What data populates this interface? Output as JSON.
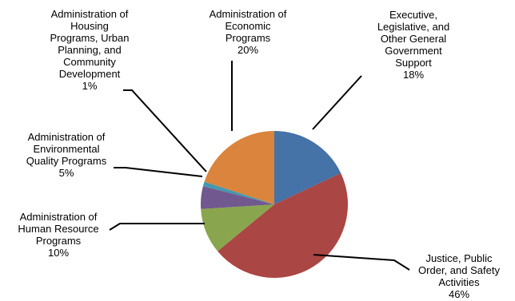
{
  "chart_data": {
    "type": "pie",
    "start_angle_deg": 0,
    "direction": "clockwise",
    "legend": "none",
    "slices": [
      {
        "label": "Executive, Legislative, and Other General Government Support",
        "label_lines": [
          "Executive,",
          "Legislative, and",
          "Other General",
          "Government",
          "Support"
        ],
        "percent_label": "18%",
        "value": 18,
        "color": "#4572A7"
      },
      {
        "label": "Justice, Public Order, and Safety Activities",
        "label_lines": [
          "Justice, Public",
          "Order, and Safety",
          "Activities"
        ],
        "percent_label": "46%",
        "value": 46,
        "color": "#AA4643"
      },
      {
        "label": "Administration of Human Resource Programs",
        "label_lines": [
          "Administration of",
          "Human Resource",
          "Programs"
        ],
        "percent_label": "10%",
        "value": 10,
        "color": "#89A54E"
      },
      {
        "label": "Administration of Environmental Quality Programs",
        "label_lines": [
          "Administration of",
          "Environmental",
          "Quality Programs"
        ],
        "percent_label": "5%",
        "value": 5,
        "color": "#71588F"
      },
      {
        "label": "Administration of Housing Programs, Urban Planning, and Community Development",
        "label_lines": [
          "Administration of",
          "Housing",
          "Programs, Urban",
          "Planning, and",
          "Community",
          "Development"
        ],
        "percent_label": "1%",
        "value": 1,
        "color": "#4198AF"
      },
      {
        "label": "Administration of Economic Programs",
        "label_lines": [
          "Administration of",
          "Economic",
          "Programs"
        ],
        "percent_label": "20%",
        "value": 20,
        "color": "#DB843D"
      }
    ]
  }
}
